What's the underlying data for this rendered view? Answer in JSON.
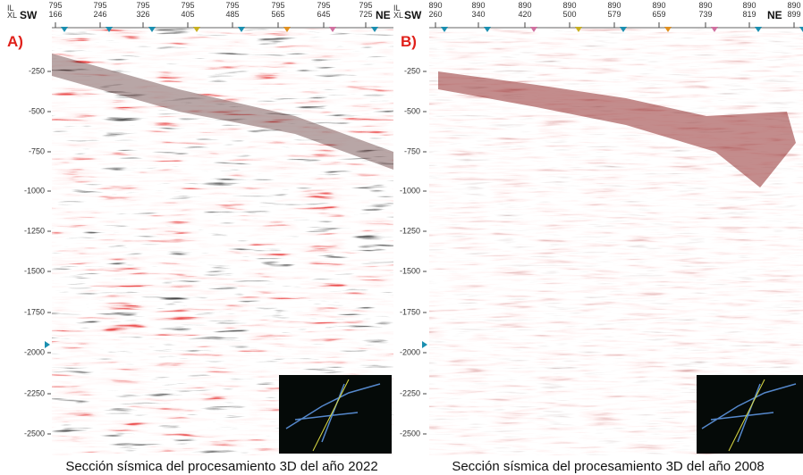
{
  "panels": [
    {
      "label": "A)",
      "il": "IL",
      "xl": "XL",
      "left": "SW",
      "right": "NE",
      "columns": [
        [
          "795",
          "166"
        ],
        [
          "795",
          "246"
        ],
        [
          "795",
          "326"
        ],
        [
          "795",
          "405"
        ],
        [
          "795",
          "485"
        ],
        [
          "795",
          "565"
        ],
        [
          "795",
          "645"
        ],
        [
          "795",
          "725"
        ]
      ],
      "depth_ticks": [
        "-250",
        "-500",
        "-750",
        "-1000",
        "-1250",
        "-1500",
        "-1750",
        "-2000",
        "-2250",
        "-2500"
      ],
      "caption": "Sección sísmica del procesamiento 3D del año 2022"
    },
    {
      "label": "B)",
      "il": "IL",
      "xl": "XL",
      "left": "SW",
      "right": "NE",
      "columns": [
        [
          "890",
          "260"
        ],
        [
          "890",
          "340"
        ],
        [
          "890",
          "420"
        ],
        [
          "890",
          "500"
        ],
        [
          "890",
          "579"
        ],
        [
          "890",
          "659"
        ],
        [
          "890",
          "739"
        ],
        [
          "890",
          "819"
        ],
        [
          "890",
          "899"
        ]
      ],
      "depth_ticks": [
        "-250",
        "-500",
        "-750",
        "-1000",
        "-1250",
        "-1500",
        "-1750",
        "-2000",
        "-2250",
        "-2500"
      ],
      "caption": "Sección sísmica del procesamiento 3D del año 2008"
    }
  ]
}
